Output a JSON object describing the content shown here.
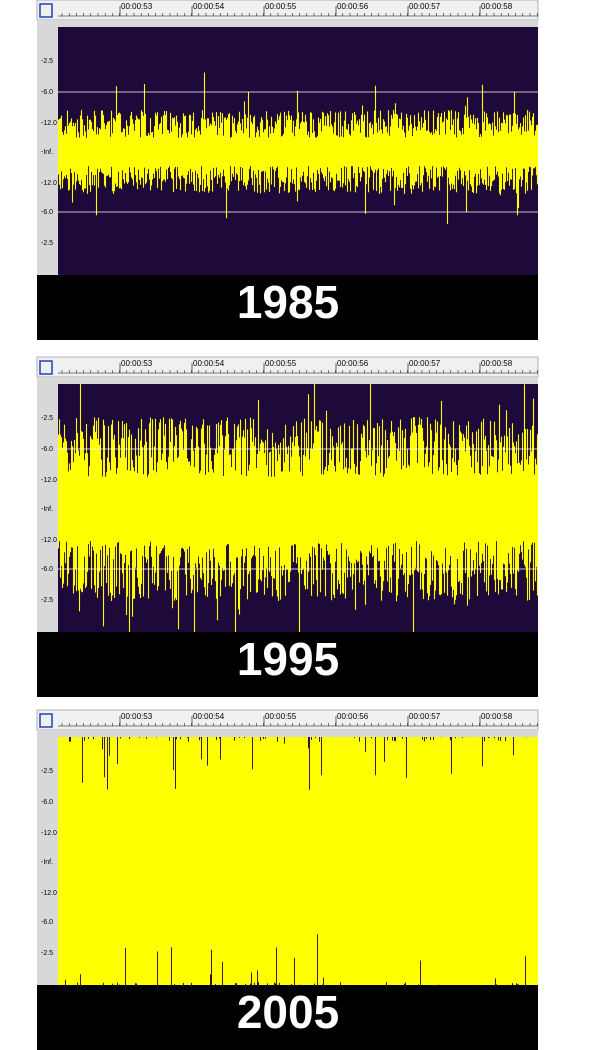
{
  "panels": [
    {
      "year": "1985",
      "time_labels": [
        "00:00:53",
        "00:00:54",
        "00:00:55",
        "00:00:56",
        "00:00:57",
        "00:00:58"
      ],
      "level_labels": [
        "-2.5",
        "-6.0",
        "-12.0",
        "-Inf.",
        "-12.0",
        "-6.0",
        "-2.5"
      ]
    },
    {
      "year": "1995",
      "time_labels": [
        "00:00:53",
        "00:00:54",
        "00:00:55",
        "00:00:56",
        "00:00:57",
        "00:00:58"
      ],
      "level_labels": [
        "-2.5",
        "-6.0",
        "-12.0",
        "-Inf.",
        "-12.0",
        "-6.0",
        "-2.5"
      ]
    },
    {
      "year": "2005",
      "time_labels": [
        "00:00:53",
        "00:00:54",
        "00:00:55",
        "00:00:56",
        "00:00:57",
        "00:00:58"
      ],
      "level_labels": [
        "-2.5",
        "-6.0",
        "-12.0",
        "-Inf.",
        "-12.0",
        "-6.0",
        "-2.5"
      ]
    }
  ]
}
